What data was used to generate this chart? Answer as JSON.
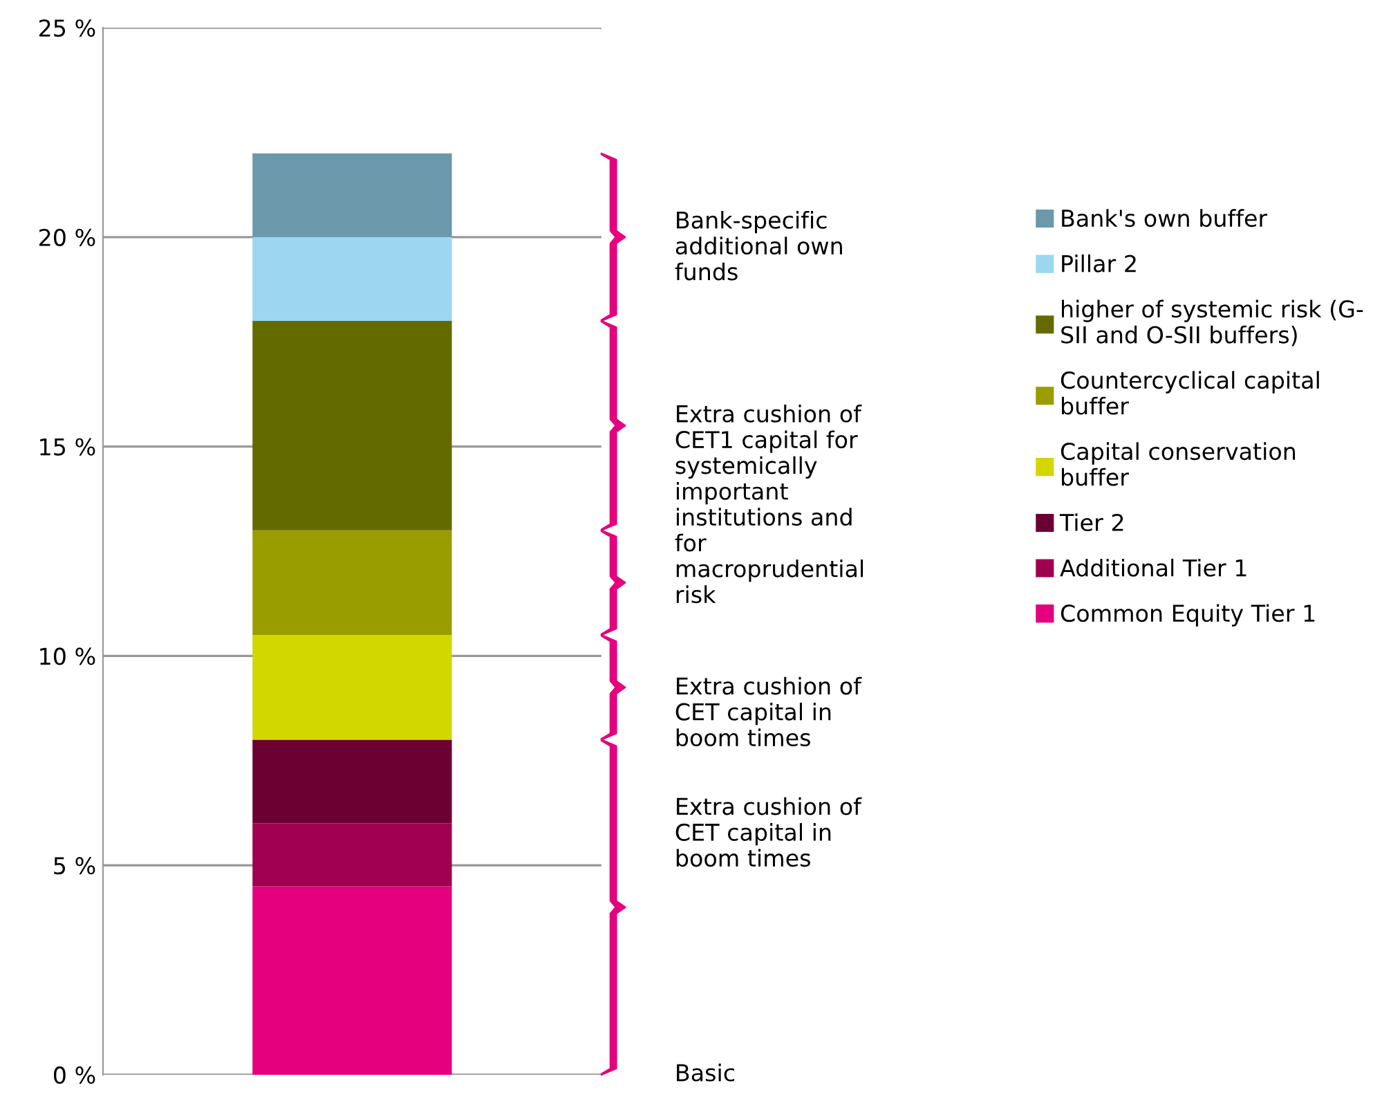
{
  "chart_data": {
    "type": "bar",
    "stacked": true,
    "categories": [
      null
    ],
    "series": [
      {
        "name": "Common Equity Tier 1",
        "color": "#e5007d",
        "values": [
          4.5
        ]
      },
      {
        "name": "Additional Tier 1",
        "color": "#a0004f",
        "values": [
          1.5
        ]
      },
      {
        "name": "Tier 2",
        "color": "#6b0033",
        "values": [
          2
        ]
      },
      {
        "name": "Capital conservation\nbuffer",
        "color": "#d2d700",
        "values": [
          2.5
        ]
      },
      {
        "name": "Countercyclical capital\nbuffer",
        "color": "#999d00",
        "values": [
          2.5
        ]
      },
      {
        "name": "higher of systemic risk (G-\nSII and O-SII buffers)",
        "color": "#636b00",
        "values": [
          5
        ]
      },
      {
        "name": "Pillar 2",
        "color": "#9dd6f0",
        "values": [
          2
        ]
      },
      {
        "name": "Bank's own buffer",
        "color": "#6b98ab",
        "values": [
          2
        ]
      }
    ],
    "ylim": [
      0,
      25
    ],
    "yticks": [
      {
        "value": 0,
        "label": "0 %"
      },
      {
        "value": 5,
        "label": "5 %"
      },
      {
        "value": 10,
        "label": "10 %"
      },
      {
        "value": 15,
        "label": "15 %"
      },
      {
        "value": 20,
        "label": "20 %"
      },
      {
        "value": 25,
        "label": "25 %"
      }
    ],
    "grid": "y",
    "legend": "right",
    "annotations": [
      "Basic",
      "Extra cushion of\nCET capital in\nboom times",
      "Extra cushion of\nCET capital in\nboom times",
      "Extra cushion of\nCET1 capital for\nsystemically\nimportant\ninstitutions and\nfor\nmacroprudential\nrisk",
      "Bank-specific\nadditional own\nfunds"
    ]
  }
}
